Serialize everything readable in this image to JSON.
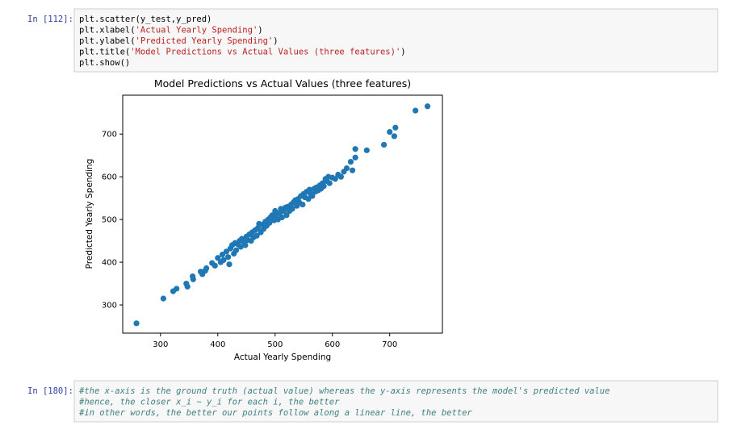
{
  "cells": [
    {
      "prompt": "In [112]:",
      "code": [
        [
          "plt.scatter(y_test,y_pred)"
        ],
        [
          "plt.xlabel(",
          "'Actual Yearly Spending'",
          ")"
        ],
        [
          "plt.ylabel(",
          "'Predicted Yearly Spending'",
          ")"
        ],
        [
          "plt.title(",
          "'Model Predictions vs Actual Values (three features)'",
          ")"
        ],
        [
          "plt.show()"
        ]
      ]
    },
    {
      "prompt": "In [180]:",
      "code": [
        [
          "#the x-axis is the ground truth (actual value) whereas the y-axis represents the model's predicted value"
        ],
        [
          "#hence, the closer x_i ~ y_i for each i, the better"
        ],
        [
          "#in other words, the better our points follow along a linear line, the better"
        ]
      ]
    }
  ],
  "chart_data": {
    "type": "scatter",
    "title": "Model Predictions vs Actual Values (three features)",
    "x_label": "Actual Yearly Spending",
    "y_label": "Predicted Yearly Spending",
    "color": "#1f77b4",
    "xlim": [
      234,
      792
    ],
    "ylim": [
      234,
      791
    ],
    "xticks": [
      300,
      400,
      500,
      600,
      700
    ],
    "yticks": [
      300,
      400,
      500,
      600,
      700
    ],
    "x": [
      258,
      305,
      322,
      328,
      345,
      347,
      356,
      357,
      370,
      373,
      378,
      380,
      390,
      395,
      400,
      405,
      408,
      410,
      415,
      418,
      420,
      422,
      425,
      428,
      430,
      432,
      435,
      438,
      440,
      442,
      445,
      448,
      450,
      452,
      455,
      458,
      460,
      462,
      465,
      468,
      470,
      472,
      475,
      478,
      480,
      483,
      485,
      488,
      490,
      492,
      495,
      498,
      500,
      502,
      505,
      508,
      510,
      512,
      515,
      518,
      520,
      522,
      525,
      528,
      530,
      532,
      535,
      538,
      540,
      542,
      545,
      548,
      550,
      552,
      555,
      558,
      560,
      562,
      565,
      568,
      570,
      572,
      575,
      578,
      580,
      583,
      585,
      588,
      590,
      593,
      595,
      600,
      605,
      610,
      615,
      620,
      625,
      632,
      635,
      640,
      640,
      660,
      690,
      700,
      708,
      710,
      745,
      766
    ],
    "values": [
      257,
      315,
      332,
      338,
      350,
      343,
      367,
      360,
      378,
      372,
      380,
      386,
      398,
      392,
      410,
      400,
      418,
      405,
      425,
      412,
      395,
      432,
      440,
      420,
      445,
      428,
      442,
      450,
      436,
      455,
      448,
      440,
      460,
      452,
      465,
      450,
      470,
      458,
      475,
      462,
      480,
      490,
      470,
      488,
      478,
      495,
      485,
      500,
      492,
      505,
      510,
      498,
      520,
      508,
      500,
      515,
      525,
      505,
      520,
      528,
      510,
      530,
      520,
      535,
      525,
      540,
      545,
      532,
      548,
      540,
      555,
      535,
      560,
      552,
      565,
      548,
      570,
      560,
      555,
      572,
      565,
      575,
      568,
      580,
      572,
      585,
      578,
      595,
      590,
      600,
      585,
      598,
      595,
      605,
      600,
      612,
      620,
      635,
      615,
      665,
      645,
      662,
      675,
      705,
      695,
      715,
      755,
      765
    ]
  }
}
